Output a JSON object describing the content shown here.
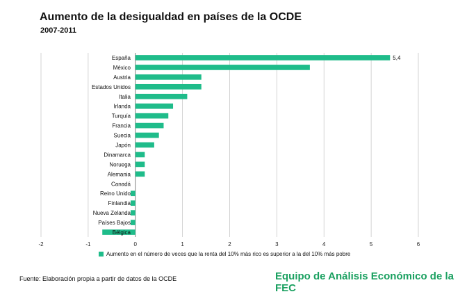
{
  "header": {
    "title": "Aumento de la desigualdad en países de la OCDE",
    "subtitle": "2007-2011"
  },
  "footer": {
    "source": "Fuente: Elaboración propia a partir de datos de la OCDE",
    "brand": "Equipo de Análisis Económico de la FEC"
  },
  "colors": {
    "bar": "#1fbc8a",
    "gridline": "#c8c8c8",
    "brand": "#1aa060"
  },
  "chart_data": {
    "type": "bar",
    "orientation": "horizontal",
    "categories": [
      "España",
      "México",
      "Austria",
      "Estados Unidos",
      "Italia",
      "Irlanda",
      "Turquía",
      "Francia",
      "Suecia",
      "Japón",
      "Dinamarca",
      "Noruega",
      "Alemania",
      "Canadá",
      "Reino Unido",
      "Finlandia",
      "Nueva Zelanda",
      "Países Bajos",
      "Bélgica"
    ],
    "series": [
      {
        "name": "Aumento en el número de veces que la renta del 10% más rico es superior a la del 10% más pobre",
        "values": [
          5.4,
          3.7,
          1.4,
          1.4,
          1.1,
          0.8,
          0.7,
          0.6,
          0.5,
          0.4,
          0.2,
          0.2,
          0.2,
          0.0,
          -0.1,
          -0.1,
          -0.1,
          -0.1,
          -0.7
        ]
      }
    ],
    "data_labels": [
      {
        "category": "España",
        "text": "5,4"
      }
    ],
    "xlim": [
      -2,
      6
    ],
    "xticks": [
      "-2",
      "-1",
      "0",
      "1",
      "2",
      "3",
      "4",
      "5",
      "6"
    ],
    "grid": "vertical",
    "legend_position": "bottom"
  }
}
